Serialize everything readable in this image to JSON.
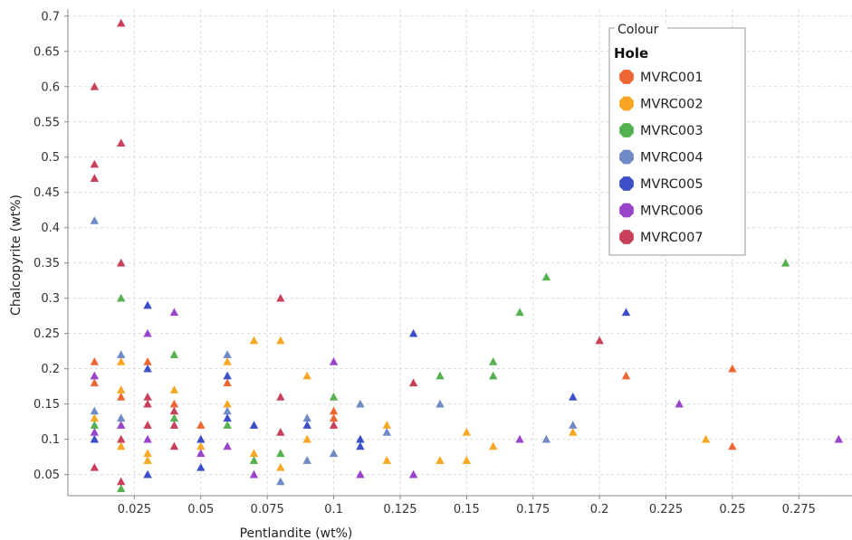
{
  "chart_data": {
    "type": "scatter",
    "xlabel": "Pentlandite (wt%)",
    "ylabel": "Chalcopyrite (wt%)",
    "xlim": [
      0,
      0.295
    ],
    "ylim": [
      0.02,
      0.71
    ],
    "x_ticks": [
      0.025,
      0.05,
      0.075,
      0.1,
      0.125,
      0.15,
      0.175,
      0.2,
      0.225,
      0.25,
      0.275
    ],
    "x_tick_labels": [
      "0.025",
      "0.05",
      "0.075",
      "0.1",
      "0.125",
      "0.15",
      "0.175",
      "0.2",
      "0.225",
      "0.25",
      "0.275"
    ],
    "y_ticks": [
      0.05,
      0.1,
      0.15,
      0.2,
      0.25,
      0.3,
      0.35,
      0.4,
      0.45,
      0.5,
      0.55,
      0.6,
      0.65,
      0.7
    ],
    "y_tick_labels": [
      "0.05",
      "0.1",
      "0.15",
      "0.2",
      "0.25",
      "0.3",
      "0.35",
      "0.4",
      "0.45",
      "0.5",
      "0.55",
      "0.6",
      "0.65",
      "0.7"
    ],
    "grid": true,
    "marker": "triangle",
    "legend": {
      "caption": "Colour",
      "heading": "Hole",
      "placement": "top-right"
    },
    "series": [
      {
        "name": "MVRC001",
        "color": "#ee6633",
        "points": [
          [
            0.01,
            0.21
          ],
          [
            0.01,
            0.18
          ],
          [
            0.02,
            0.16
          ],
          [
            0.03,
            0.21
          ],
          [
            0.04,
            0.15
          ],
          [
            0.05,
            0.12
          ],
          [
            0.06,
            0.18
          ],
          [
            0.1,
            0.14
          ],
          [
            0.1,
            0.13
          ],
          [
            0.21,
            0.19
          ],
          [
            0.25,
            0.2
          ],
          [
            0.25,
            0.09
          ]
        ]
      },
      {
        "name": "MVRC002",
        "color": "#f8a724",
        "points": [
          [
            0.01,
            0.13
          ],
          [
            0.02,
            0.21
          ],
          [
            0.02,
            0.17
          ],
          [
            0.02,
            0.09
          ],
          [
            0.03,
            0.08
          ],
          [
            0.03,
            0.07
          ],
          [
            0.04,
            0.17
          ],
          [
            0.05,
            0.09
          ],
          [
            0.06,
            0.21
          ],
          [
            0.06,
            0.15
          ],
          [
            0.07,
            0.24
          ],
          [
            0.07,
            0.08
          ],
          [
            0.08,
            0.24
          ],
          [
            0.08,
            0.06
          ],
          [
            0.09,
            0.19
          ],
          [
            0.09,
            0.1
          ],
          [
            0.12,
            0.12
          ],
          [
            0.12,
            0.07
          ],
          [
            0.14,
            0.07
          ],
          [
            0.15,
            0.11
          ],
          [
            0.15,
            0.07
          ],
          [
            0.16,
            0.09
          ],
          [
            0.19,
            0.11
          ],
          [
            0.24,
            0.1
          ]
        ]
      },
      {
        "name": "MVRC003",
        "color": "#55b050",
        "points": [
          [
            0.01,
            0.12
          ],
          [
            0.02,
            0.3
          ],
          [
            0.02,
            0.03
          ],
          [
            0.04,
            0.22
          ],
          [
            0.04,
            0.13
          ],
          [
            0.06,
            0.12
          ],
          [
            0.07,
            0.07
          ],
          [
            0.08,
            0.08
          ],
          [
            0.1,
            0.16
          ],
          [
            0.14,
            0.19
          ],
          [
            0.16,
            0.21
          ],
          [
            0.16,
            0.19
          ],
          [
            0.17,
            0.28
          ],
          [
            0.18,
            0.33
          ],
          [
            0.27,
            0.35
          ]
        ]
      },
      {
        "name": "MVRC004",
        "color": "#6f8ac6",
        "points": [
          [
            0.01,
            0.41
          ],
          [
            0.01,
            0.14
          ],
          [
            0.02,
            0.22
          ],
          [
            0.02,
            0.13
          ],
          [
            0.06,
            0.22
          ],
          [
            0.06,
            0.14
          ],
          [
            0.08,
            0.04
          ],
          [
            0.09,
            0.13
          ],
          [
            0.09,
            0.07
          ],
          [
            0.1,
            0.08
          ],
          [
            0.11,
            0.15
          ],
          [
            0.12,
            0.11
          ],
          [
            0.14,
            0.15
          ],
          [
            0.18,
            0.1
          ],
          [
            0.19,
            0.12
          ]
        ]
      },
      {
        "name": "MVRC005",
        "color": "#3a4fc8",
        "points": [
          [
            0.01,
            0.1
          ],
          [
            0.03,
            0.29
          ],
          [
            0.03,
            0.2
          ],
          [
            0.03,
            0.05
          ],
          [
            0.05,
            0.1
          ],
          [
            0.05,
            0.06
          ],
          [
            0.06,
            0.19
          ],
          [
            0.06,
            0.13
          ],
          [
            0.07,
            0.12
          ],
          [
            0.09,
            0.12
          ],
          [
            0.11,
            0.09
          ],
          [
            0.11,
            0.1
          ],
          [
            0.13,
            0.25
          ],
          [
            0.19,
            0.16
          ],
          [
            0.21,
            0.28
          ]
        ]
      },
      {
        "name": "MVRC006",
        "color": "#9a44cc",
        "points": [
          [
            0.01,
            0.19
          ],
          [
            0.01,
            0.11
          ],
          [
            0.02,
            0.12
          ],
          [
            0.03,
            0.25
          ],
          [
            0.03,
            0.1
          ],
          [
            0.04,
            0.28
          ],
          [
            0.05,
            0.08
          ],
          [
            0.06,
            0.09
          ],
          [
            0.07,
            0.05
          ],
          [
            0.1,
            0.21
          ],
          [
            0.11,
            0.05
          ],
          [
            0.13,
            0.05
          ],
          [
            0.17,
            0.1
          ],
          [
            0.23,
            0.15
          ],
          [
            0.29,
            0.1
          ]
        ]
      },
      {
        "name": "MVRC007",
        "color": "#c8405a",
        "points": [
          [
            0.01,
            0.6
          ],
          [
            0.01,
            0.49
          ],
          [
            0.01,
            0.47
          ],
          [
            0.01,
            0.06
          ],
          [
            0.02,
            0.69
          ],
          [
            0.02,
            0.52
          ],
          [
            0.02,
            0.35
          ],
          [
            0.02,
            0.1
          ],
          [
            0.02,
            0.04
          ],
          [
            0.03,
            0.16
          ],
          [
            0.03,
            0.15
          ],
          [
            0.03,
            0.12
          ],
          [
            0.04,
            0.14
          ],
          [
            0.04,
            0.12
          ],
          [
            0.04,
            0.09
          ],
          [
            0.08,
            0.3
          ],
          [
            0.08,
            0.16
          ],
          [
            0.08,
            0.11
          ],
          [
            0.1,
            0.12
          ],
          [
            0.13,
            0.18
          ],
          [
            0.2,
            0.24
          ]
        ]
      }
    ]
  }
}
